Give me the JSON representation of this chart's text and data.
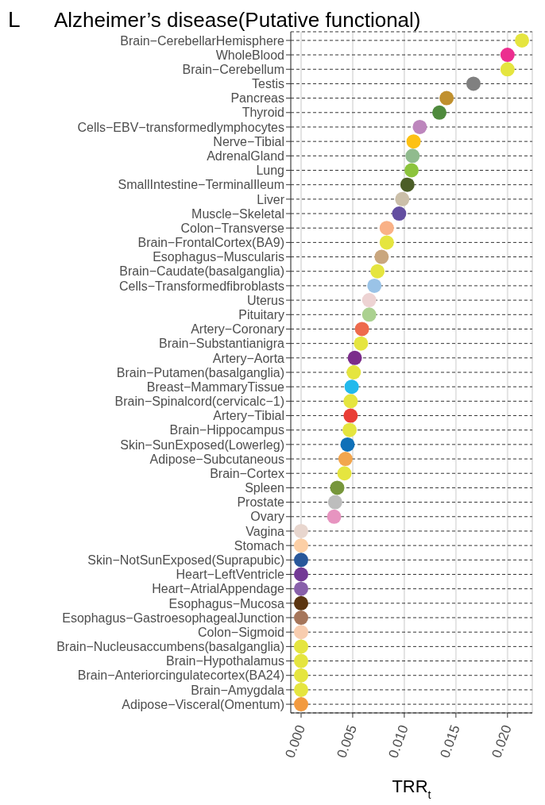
{
  "chart_data": {
    "type": "scatter",
    "orientation": "horizontal",
    "title": "Alzheimer’s disease(Putative functional)",
    "annotations": [
      "L"
    ],
    "xlabel": "TRR$_{t}$",
    "categories": [
      "Brain−CerebellarHemisphere",
      "WholeBlood",
      "Brain−Cerebellum",
      "Testis",
      "Pancreas",
      "Thyroid",
      "Cells−EBV−transformedlymphocytes",
      "Nerve−Tibial",
      "AdrenalGland",
      "Lung",
      "SmallIntestine−TerminalIleum",
      "Liver",
      "Muscle−Skeletal",
      "Colon−Transverse",
      "Brain−FrontalCortex(BA9)",
      "Esophagus−Muscularis",
      "Brain−Caudate(basalganglia)",
      "Cells−Transformedfibroblasts",
      "Uterus",
      "Pituitary",
      "Artery−Coronary",
      "Brain−Substantianigra",
      "Artery−Aorta",
      "Brain−Putamen(basalganglia)",
      "Breast−MammaryTissue",
      "Brain−Spinalcord(cervicalc−1)",
      "Artery−Tibial",
      "Brain−Hippocampus",
      "Skin−SunExposed(Lowerleg)",
      "Adipose−Subcutaneous",
      "Brain−Cortex",
      "Spleen",
      "Prostate",
      "Ovary",
      "Vagina",
      "Stomach",
      "Skin−NotSunExposed(Suprapubic)",
      "Heart−LeftVentricle",
      "Heart−AtrialAppendage",
      "Esophagus−Mucosa",
      "Esophagus−GastroesophagealJunction",
      "Colon−Sigmoid",
      "Brain−Nucleusaccumbens(basalganglia)",
      "Brain−Hypothalamus",
      "Brain−Anteriorcingulatecortex(BA24)",
      "Brain−Amygdala",
      "Adipose−Visceral(Omentum)"
    ],
    "values": [
      0.0214,
      0.02,
      0.02,
      0.0167,
      0.0141,
      0.0134,
      0.0115,
      0.0109,
      0.0108,
      0.0107,
      0.0103,
      0.0098,
      0.0095,
      0.0083,
      0.0083,
      0.0078,
      0.0074,
      0.0071,
      0.0066,
      0.0066,
      0.0059,
      0.0058,
      0.0052,
      0.0051,
      0.0049,
      0.0048,
      0.0048,
      0.0047,
      0.0045,
      0.0043,
      0.0042,
      0.0035,
      0.0033,
      0.0032,
      0,
      0,
      0,
      0,
      0,
      0,
      0,
      0,
      0,
      0,
      0,
      0,
      0
    ],
    "colors": [
      "#e5e53f",
      "#ec2e8f",
      "#e5e53f",
      "#808080",
      "#c0902e",
      "#4f8a3d",
      "#bd86bd",
      "#fdc114",
      "#90bb8e",
      "#8cc43c",
      "#4b5d27",
      "#cbbfa9",
      "#634ea0",
      "#f9b186",
      "#e5e53f",
      "#c9a67e",
      "#e5e53f",
      "#9ac3e7",
      "#edd3d3",
      "#abd190",
      "#ee6a4c",
      "#e5e53f",
      "#7b2d8b",
      "#e5e53f",
      "#22b9ec",
      "#e5e53f",
      "#e93e36",
      "#e5e53f",
      "#0f70b8",
      "#f2a64e",
      "#e5e53f",
      "#77963b",
      "#bdbdbd",
      "#e794c0",
      "#e8d6ce",
      "#fccfa5",
      "#28579a",
      "#733a95",
      "#8860aa",
      "#5b3511",
      "#a5755a",
      "#f8cdaf",
      "#e5e53f",
      "#e5e53f",
      "#e5e53f",
      "#e5e53f",
      "#f29a3f"
    ],
    "xlim": [
      -0.001,
      0.0224
    ],
    "xticks": [
      {
        "value": 0,
        "label": "0.000"
      },
      {
        "value": 0.005,
        "label": "0.005"
      },
      {
        "value": 0.01,
        "label": "0.010"
      },
      {
        "value": 0.015,
        "label": "0.015"
      },
      {
        "value": 0.02,
        "label": "0.020"
      }
    ],
    "grid": true,
    "marker": "circle"
  }
}
